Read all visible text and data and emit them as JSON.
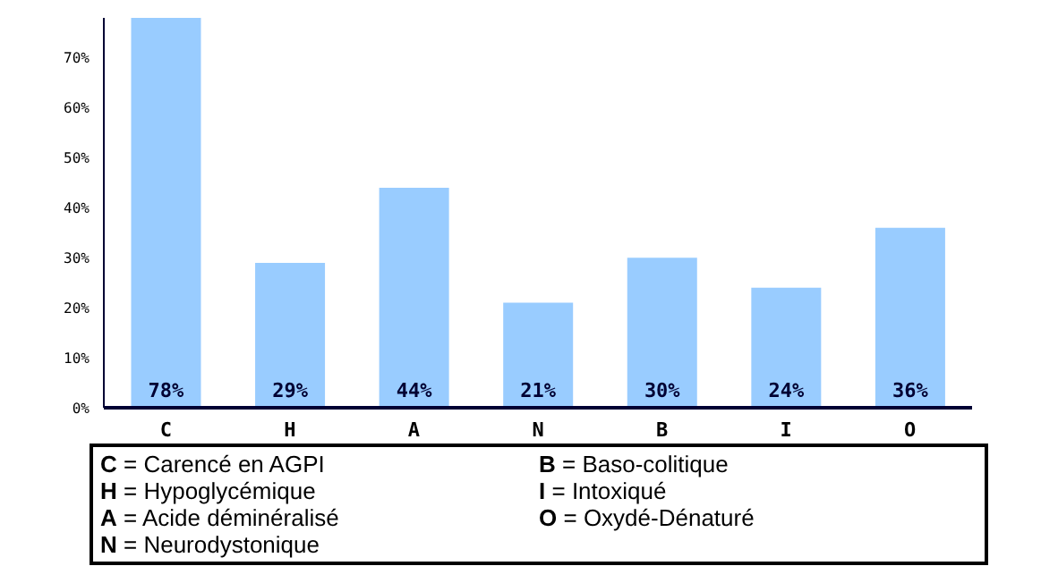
{
  "chart_data": {
    "type": "bar",
    "categories": [
      "C",
      "H",
      "A",
      "N",
      "B",
      "I",
      "O"
    ],
    "values": [
      78,
      29,
      44,
      21,
      30,
      24,
      36
    ],
    "value_labels": [
      "78%",
      "29%",
      "44%",
      "21%",
      "30%",
      "24%",
      "36%"
    ],
    "color": "#99ccff",
    "ylim": [
      0,
      78
    ],
    "yticks": [
      {
        "value": 0,
        "label": "0%"
      },
      {
        "value": 10,
        "label": "10%"
      },
      {
        "value": 20,
        "label": "20%"
      },
      {
        "value": 30,
        "label": "30%"
      },
      {
        "value": 40,
        "label": "40%"
      },
      {
        "value": 50,
        "label": "50%"
      },
      {
        "value": 60,
        "label": "60%"
      },
      {
        "value": 70,
        "label": "70%"
      }
    ],
    "grid": false,
    "legend": false,
    "annotations": [
      "C = Carencé en AGPI",
      "H = Hypoglycémique",
      "A = Acide déminéralisé",
      "N = Neurodystonique",
      "B = Baso-colitique",
      "I = Intoxiqué",
      "O = Oxydé-Dénaturé"
    ]
  }
}
